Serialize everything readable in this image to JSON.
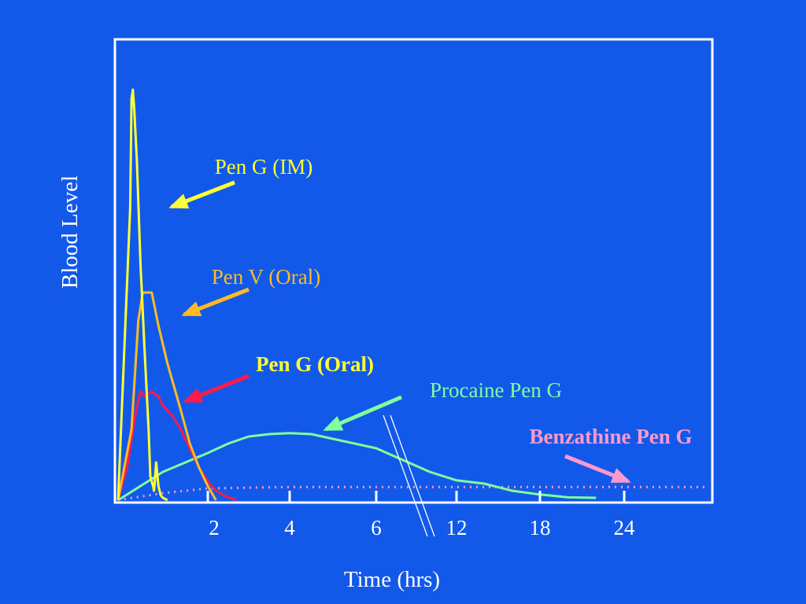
{
  "colors": {
    "background": "#1259ea",
    "frame": "#ffffff",
    "pen_g_im": "#ffff33",
    "pen_v_oral": "#ffbb22",
    "pen_g_oral": "#ff1a4a",
    "procaine": "#80ff99",
    "benzathine": "#ff99cc"
  },
  "chart_data": {
    "type": "line",
    "xlabel": "Time (hrs)",
    "ylabel": "Blood Level",
    "x_ticks": [
      "2",
      "4",
      "6",
      "12",
      "18",
      "24"
    ],
    "axis_break": "between 6 and 12",
    "grid": false,
    "series": [
      {
        "name": "Pen G (IM)",
        "color": "#ffff33",
        "bold": false,
        "label_color": "#ffff33",
        "points": [
          [
            0,
            0
          ],
          [
            0.27,
            0.62
          ],
          [
            0.3,
            0.85
          ],
          [
            0.33,
            0.87
          ],
          [
            0.36,
            0.83
          ],
          [
            0.42,
            0.72
          ],
          [
            0.5,
            0.5
          ],
          [
            0.6,
            0.3
          ],
          [
            0.68,
            0.15
          ],
          [
            0.72,
            0.05
          ],
          [
            0.78,
            0.03
          ],
          [
            0.8,
            0.02
          ],
          [
            0.82,
            0.04
          ],
          [
            0.85,
            0.08
          ],
          [
            0.9,
            0.03
          ],
          [
            0.95,
            0.01
          ],
          [
            1.0,
            0.005
          ],
          [
            1.1,
            0.0
          ]
        ]
      },
      {
        "name": "Pen V (Oral)",
        "color": "#ffbb22",
        "bold": false,
        "label_color": "#ffbb22",
        "points": [
          [
            0,
            0
          ],
          [
            0.3,
            0.15
          ],
          [
            0.45,
            0.38
          ],
          [
            0.55,
            0.44
          ],
          [
            0.75,
            0.44
          ],
          [
            0.9,
            0.37
          ],
          [
            1.1,
            0.29
          ],
          [
            1.4,
            0.19
          ],
          [
            1.6,
            0.12
          ],
          [
            1.8,
            0.07
          ],
          [
            2.0,
            0.03
          ],
          [
            2.2,
            0.0
          ]
        ]
      },
      {
        "name": "Pen G  (Oral)",
        "color": "#ff1a4a",
        "bold": true,
        "label_color": "#ffff33",
        "points": [
          [
            0,
            0
          ],
          [
            0.2,
            0.07
          ],
          [
            0.4,
            0.19
          ],
          [
            0.5,
            0.23
          ],
          [
            0.6,
            0.22
          ],
          [
            0.75,
            0.23
          ],
          [
            0.9,
            0.22
          ],
          [
            1.0,
            0.2
          ],
          [
            1.2,
            0.18
          ],
          [
            1.4,
            0.15
          ],
          [
            1.6,
            0.11
          ],
          [
            1.8,
            0.07
          ],
          [
            2.0,
            0.04
          ],
          [
            2.2,
            0.02
          ],
          [
            2.4,
            0.01
          ],
          [
            2.7,
            0.0
          ]
        ]
      },
      {
        "name": "Procaine Pen G",
        "color": "#80ff99",
        "bold": false,
        "label_color": "#80ff99",
        "points": [
          [
            0,
            0
          ],
          [
            0.5,
            0.03
          ],
          [
            1.0,
            0.06
          ],
          [
            1.5,
            0.08
          ],
          [
            2.0,
            0.1
          ],
          [
            2.5,
            0.12
          ],
          [
            3,
            0.135
          ],
          [
            3.5,
            0.14
          ],
          [
            4,
            0.142
          ],
          [
            4.5,
            0.14
          ],
          [
            5,
            0.13
          ],
          [
            5.5,
            0.12
          ],
          [
            6,
            0.11
          ],
          [
            8,
            0.085
          ],
          [
            10,
            0.06
          ],
          [
            12,
            0.042
          ],
          [
            14,
            0.035
          ],
          [
            16,
            0.02
          ],
          [
            18,
            0.012
          ],
          [
            20,
            0.006
          ],
          [
            22,
            0.005
          ]
        ]
      },
      {
        "name": "Benzathine Pen G",
        "color": "#ff99cc",
        "bold": true,
        "dotted": true,
        "label_color": "#ff99cc",
        "points": [
          [
            0,
            0
          ],
          [
            1,
            0.015
          ],
          [
            2,
            0.025
          ],
          [
            4,
            0.028
          ],
          [
            8,
            0.028
          ],
          [
            14,
            0.028
          ],
          [
            24,
            0.028
          ],
          [
            28,
            0.028
          ]
        ]
      }
    ],
    "annotations": [
      {
        "text": "Pen G (IM)",
        "series": "Pen G (IM)"
      },
      {
        "text": "Pen V (Oral)",
        "series": "Pen V (Oral)"
      },
      {
        "text": "Pen G  (Oral)",
        "series": "Pen G  (Oral)"
      },
      {
        "text": "Procaine Pen G",
        "series": "Procaine Pen G"
      },
      {
        "text": "Benzathine Pen G",
        "series": "Benzathine Pen G"
      }
    ]
  }
}
